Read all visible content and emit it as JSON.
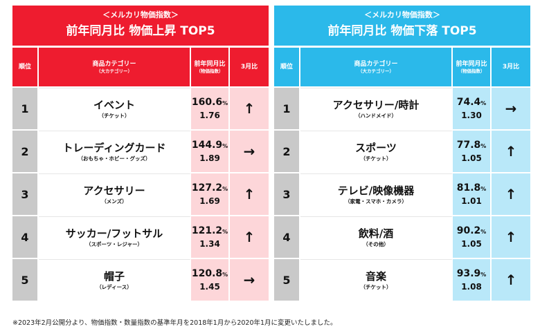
{
  "rise": {
    "banner_sub": "＜メルカリ物価指数＞",
    "banner_title": "前年同月比 物価上昇 TOP5",
    "headers": {
      "rank": "順位",
      "category": "商品カテゴリー",
      "category_sub": "（大カテゴリー）",
      "value": "前年同月比",
      "value_sub": "（物価指数）",
      "trend": "3月比"
    },
    "rows": [
      {
        "rank": "1",
        "name": "イベント",
        "sub": "（チケット）",
        "pct": "160.6",
        "ratio": "1.76",
        "trend": "up"
      },
      {
        "rank": "2",
        "name": "トレーディングカード",
        "sub": "（おもちゃ・ホビー・グッズ）",
        "pct": "144.9",
        "ratio": "1.89",
        "trend": "right"
      },
      {
        "rank": "3",
        "name": "アクセサリー",
        "sub": "（メンズ）",
        "pct": "127.2",
        "ratio": "1.69",
        "trend": "up"
      },
      {
        "rank": "4",
        "name": "サッカー/フットサル",
        "sub": "（スポーツ・レジャー）",
        "pct": "121.2",
        "ratio": "1.34",
        "trend": "up"
      },
      {
        "rank": "5",
        "name": "帽子",
        "sub": "（レディース）",
        "pct": "120.8",
        "ratio": "1.45",
        "trend": "right"
      }
    ]
  },
  "fall": {
    "banner_sub": "＜メルカリ物価指数＞",
    "banner_title": "前年同月比 物価下落 TOP5",
    "headers": {
      "rank": "順位",
      "category": "商品カテゴリー",
      "category_sub": "（大カテゴリー）",
      "value": "前年同月比",
      "value_sub": "（物価指数）",
      "trend": "3月比"
    },
    "rows": [
      {
        "rank": "1",
        "name": "アクセサリー/時計",
        "sub": "（ハンドメイド）",
        "pct": "74.4",
        "ratio": "1.30",
        "trend": "right"
      },
      {
        "rank": "2",
        "name": "スポーツ",
        "sub": "（チケット）",
        "pct": "77.8",
        "ratio": "1.05",
        "trend": "up"
      },
      {
        "rank": "3",
        "name": "テレビ/映像機器",
        "sub": "（家電・スマホ・カメラ）",
        "pct": "81.8",
        "ratio": "1.01",
        "trend": "up"
      },
      {
        "rank": "4",
        "name": "飲料/酒",
        "sub": "（その他）",
        "pct": "90.2",
        "ratio": "1.05",
        "trend": "up"
      },
      {
        "rank": "5",
        "name": "音楽",
        "sub": "（チケット）",
        "pct": "93.9",
        "ratio": "1.08",
        "trend": "up"
      }
    ]
  },
  "pct_unit": "%",
  "trend_icons": {
    "up": "arrow-up-icon",
    "right": "arrow-right-icon"
  },
  "colors": {
    "rise_red": "#ee1c2f",
    "fall_blue": "#2bb9ea",
    "rise_pink": "#fdd6d9",
    "fall_lightblue": "#b9e8f9",
    "rank_gray": "#c9c9c9"
  },
  "footnote": "※2023年2月公開分より、物価指数・数量指数の基準年月を2018年1月から2020年1月に変更いたしました。"
}
